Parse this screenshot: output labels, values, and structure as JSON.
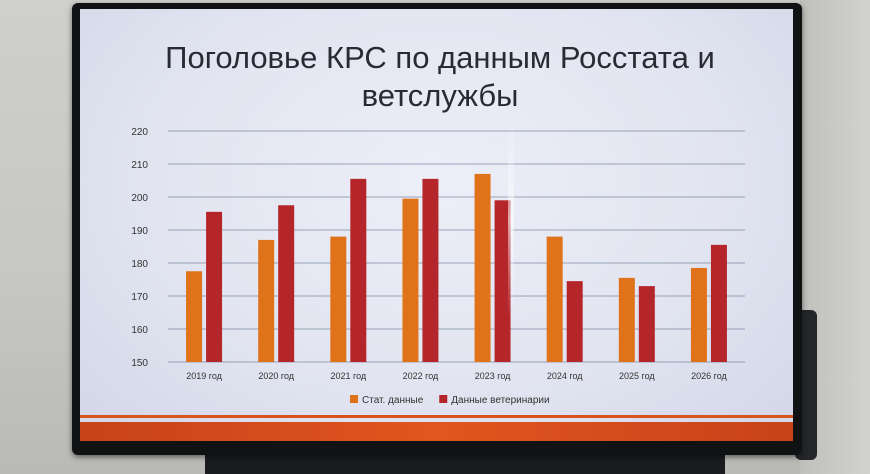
{
  "chart_data": {
    "type": "bar",
    "title": "Поголовье КРС по данным Росстата и ветслужбы",
    "categories": [
      "2019 год",
      "2020 год",
      "2021 год",
      "2022 год",
      "2023 год",
      "2024 год",
      "2025 год",
      "2026 год"
    ],
    "series": [
      {
        "name": "Стат. данные",
        "color": "#e0731a",
        "values": [
          177.5,
          187,
          188,
          199.5,
          207,
          188,
          175.5,
          178.5
        ]
      },
      {
        "name": "Данные ветеринарии",
        "color": "#b5262a",
        "values": [
          195.5,
          197.5,
          205.5,
          205.5,
          199,
          174.5,
          173,
          185.5
        ]
      }
    ],
    "ylim": [
      150,
      220
    ],
    "yticks": [
      "150",
      "160",
      "170",
      "180",
      "190",
      "200",
      "210",
      "220"
    ],
    "grid": true,
    "legend": "bottom"
  }
}
